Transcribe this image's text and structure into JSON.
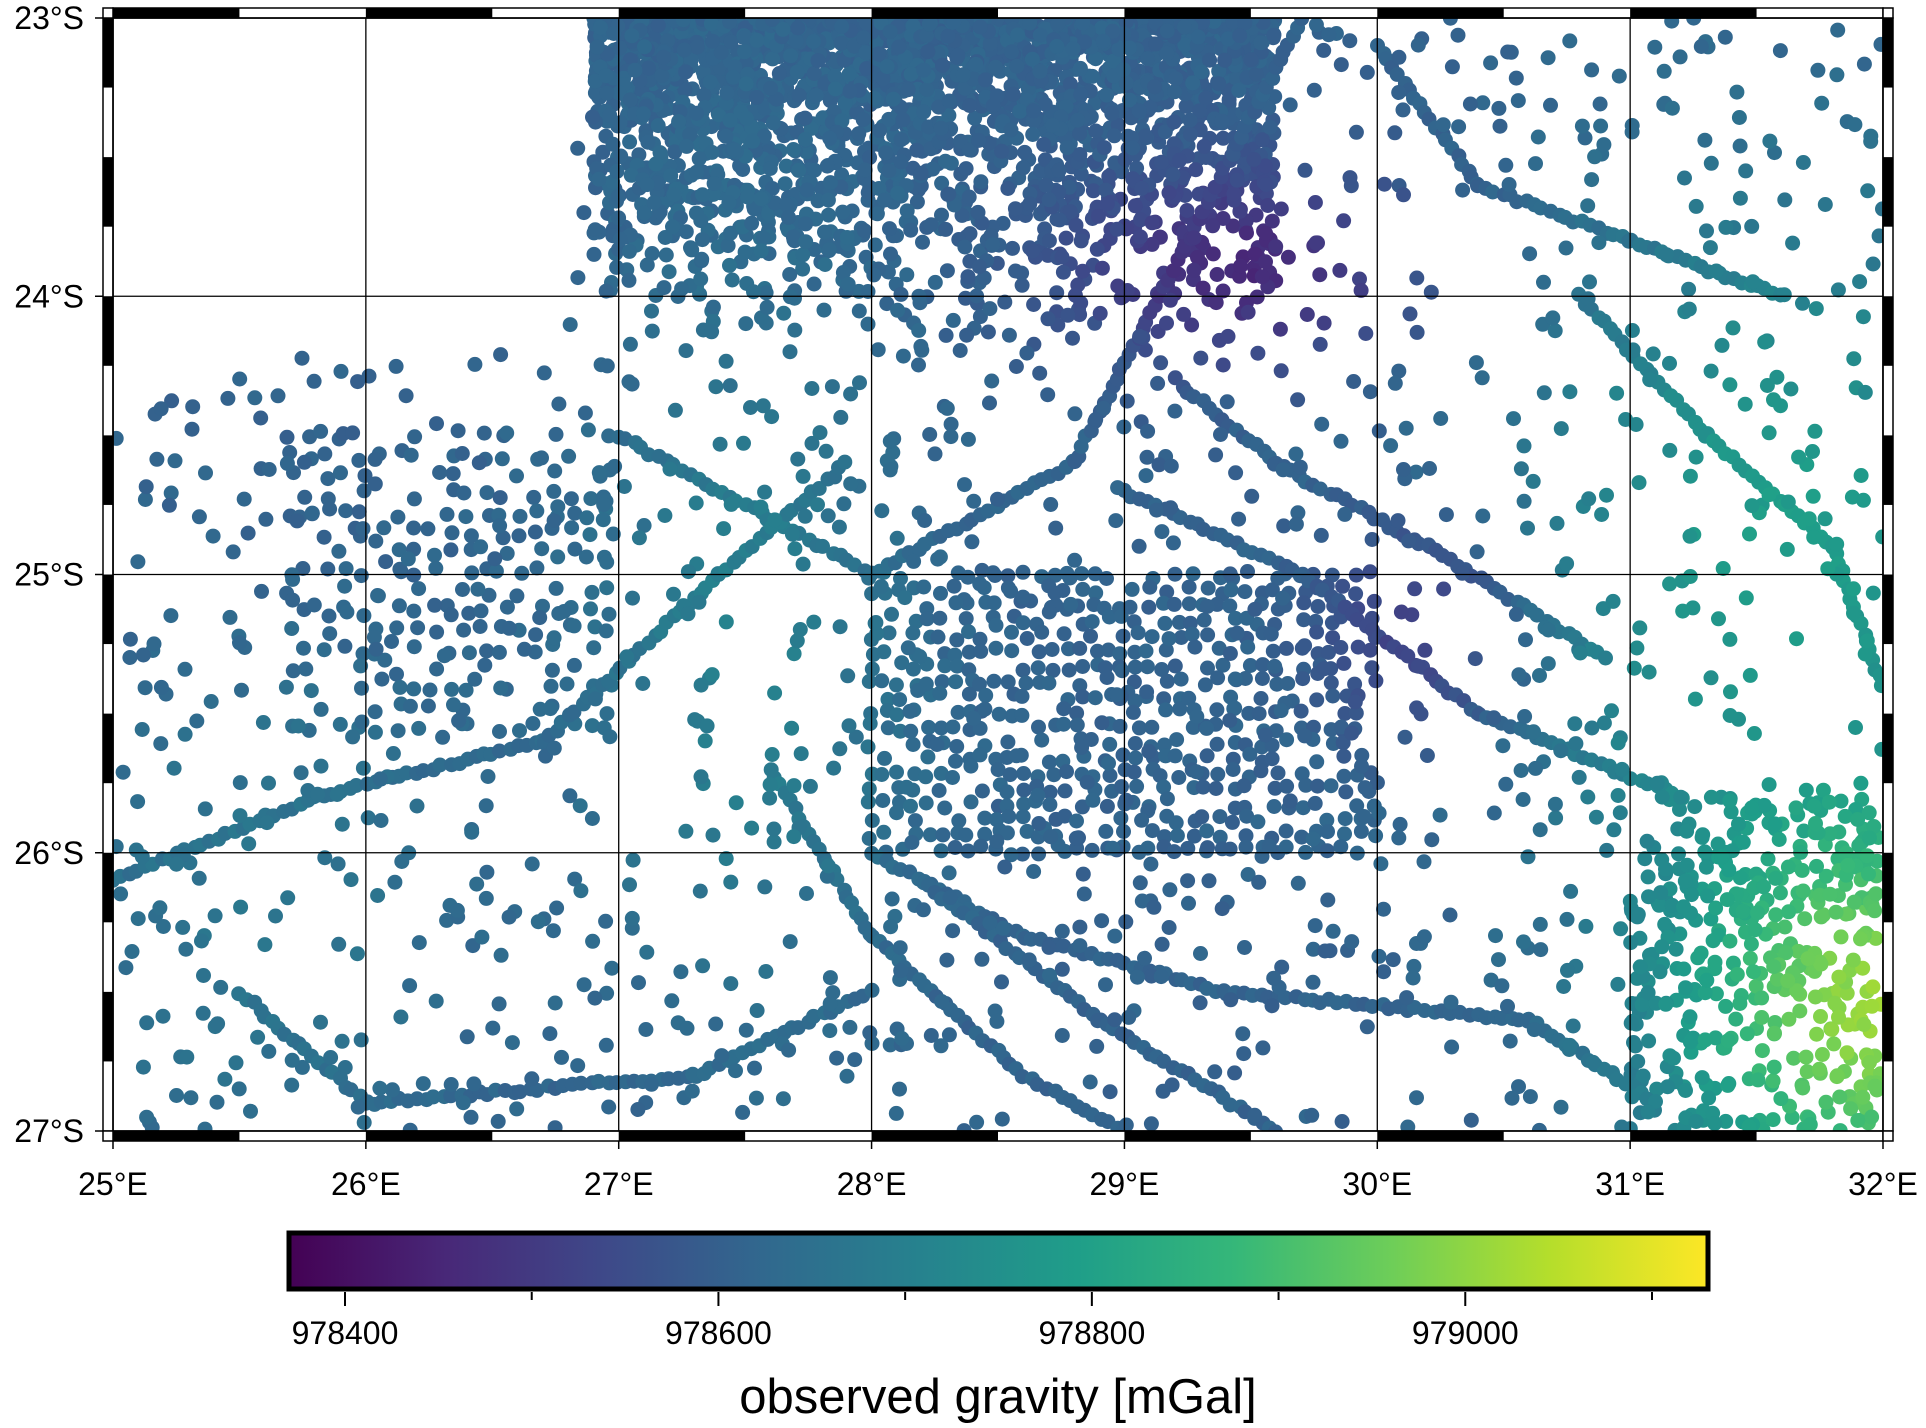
{
  "map": {
    "lon_range": [
      25,
      32
    ],
    "lat_range": [
      -27,
      -23
    ],
    "x_ticks": [
      {
        "value": 25,
        "label": "25°E"
      },
      {
        "value": 26,
        "label": "26°E"
      },
      {
        "value": 27,
        "label": "27°E"
      },
      {
        "value": 28,
        "label": "28°E"
      },
      {
        "value": 29,
        "label": "29°E"
      },
      {
        "value": 30,
        "label": "30°E"
      },
      {
        "value": 31,
        "label": "31°E"
      },
      {
        "value": 32,
        "label": "32°E"
      }
    ],
    "y_ticks": [
      {
        "value": -23,
        "label": "23°S"
      },
      {
        "value": -24,
        "label": "24°S"
      },
      {
        "value": -25,
        "label": "25°S"
      },
      {
        "value": -26,
        "label": "26°S"
      },
      {
        "value": -27,
        "label": "27°S"
      }
    ],
    "gridlines": true,
    "frame": "fancy",
    "point_color_by": "observed gravity"
  },
  "colorbar": {
    "label": "observed gravity [mGal]",
    "range": [
      978370,
      979130
    ],
    "ticks": [
      {
        "value": 978400,
        "label": "978400"
      },
      {
        "value": 978600,
        "label": "978600"
      },
      {
        "value": 978800,
        "label": "978800"
      },
      {
        "value": 979000,
        "label": "979000"
      }
    ],
    "minor_ticks": [
      978500,
      978700,
      978900,
      979100
    ],
    "colormap": "viridis",
    "colors": [
      "#440154",
      "#482878",
      "#3e4989",
      "#31688e",
      "#26828e",
      "#1f9e89",
      "#35b779",
      "#6ece58",
      "#b5de2b",
      "#fde725"
    ]
  }
}
